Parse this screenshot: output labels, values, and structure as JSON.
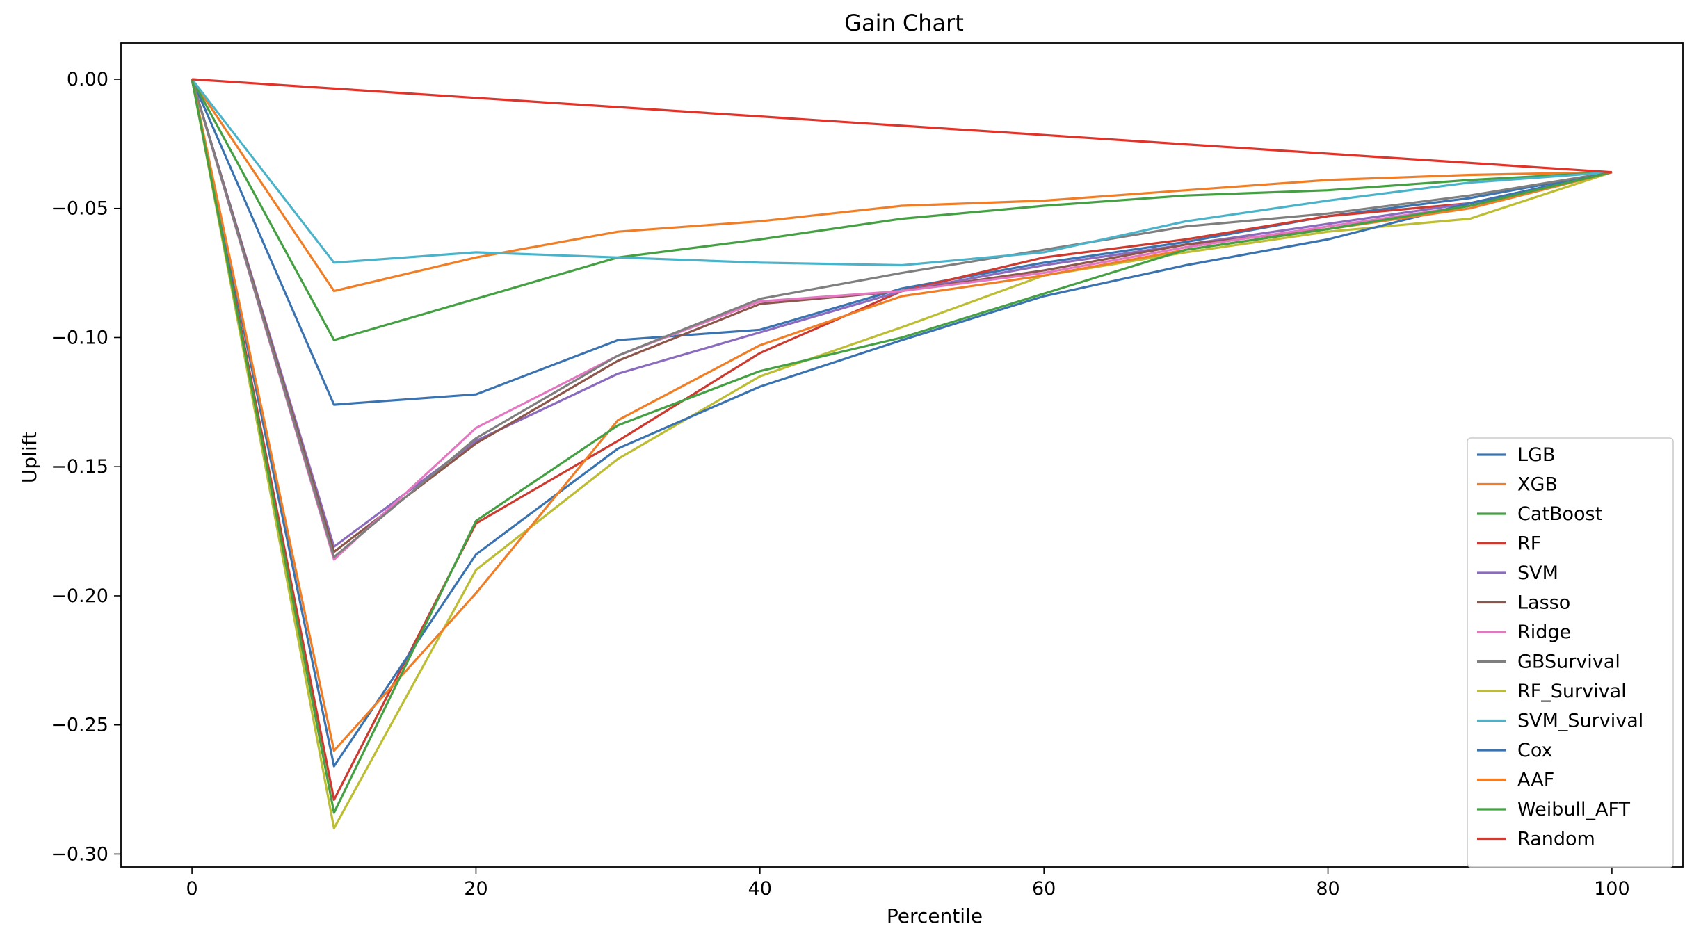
{
  "chart_data": {
    "type": "line",
    "title": "Gain Chart",
    "xlabel": "Percentile",
    "ylabel": "Uplift",
    "xlim": [
      -5,
      105
    ],
    "ylim": [
      -0.305,
      0.014
    ],
    "xticks": [
      0,
      20,
      40,
      60,
      80,
      100
    ],
    "xtick_labels": [
      "0",
      "20",
      "40",
      "60",
      "80",
      "100"
    ],
    "yticks": [
      0.0,
      -0.05,
      -0.1,
      -0.15,
      -0.2,
      -0.25,
      -0.3
    ],
    "ytick_labels": [
      "0.00",
      "−0.05",
      "−0.10",
      "−0.15",
      "−0.20",
      "−0.25",
      "−0.30"
    ],
    "grid": false,
    "legend_position": "lower-right",
    "x": [
      0,
      10,
      20,
      30,
      40,
      50,
      60,
      70,
      80,
      90,
      100
    ],
    "series": [
      {
        "name": "LGB",
        "color": "#3a73b0",
        "values": [
          0.0,
          -0.126,
          -0.122,
          -0.101,
          -0.097,
          -0.081,
          -0.071,
          -0.063,
          -0.053,
          -0.046,
          -0.036
        ]
      },
      {
        "name": "XGB",
        "color": "#f07e26",
        "values": [
          0.0,
          -0.082,
          -0.069,
          -0.059,
          -0.055,
          -0.049,
          -0.047,
          -0.043,
          -0.039,
          -0.037,
          -0.036
        ]
      },
      {
        "name": "CatBoost",
        "color": "#44a043",
        "values": [
          0.0,
          -0.101,
          -0.085,
          -0.069,
          -0.062,
          -0.054,
          -0.049,
          -0.045,
          -0.043,
          -0.039,
          -0.036
        ]
      },
      {
        "name": "RF",
        "color": "#cc3a30",
        "values": [
          0.0,
          -0.279,
          -0.172,
          -0.14,
          -0.106,
          -0.082,
          -0.069,
          -0.062,
          -0.053,
          -0.048,
          -0.036
        ]
      },
      {
        "name": "SVM",
        "color": "#8a6bbd",
        "values": [
          0.0,
          -0.181,
          -0.14,
          -0.114,
          -0.098,
          -0.082,
          -0.072,
          -0.064,
          -0.056,
          -0.048,
          -0.036
        ]
      },
      {
        "name": "Lasso",
        "color": "#8c564b",
        "values": [
          0.0,
          -0.183,
          -0.141,
          -0.109,
          -0.087,
          -0.082,
          -0.074,
          -0.064,
          -0.058,
          -0.049,
          -0.036
        ]
      },
      {
        "name": "Ridge",
        "color": "#e377c2",
        "values": [
          0.0,
          -0.186,
          -0.135,
          -0.107,
          -0.086,
          -0.082,
          -0.075,
          -0.065,
          -0.057,
          -0.049,
          -0.036
        ]
      },
      {
        "name": "GBSurvival",
        "color": "#7f7f7f",
        "values": [
          0.0,
          -0.185,
          -0.139,
          -0.107,
          -0.085,
          -0.075,
          -0.066,
          -0.057,
          -0.052,
          -0.045,
          -0.036
        ]
      },
      {
        "name": "RF_Survival",
        "color": "#bcbd32",
        "values": [
          0.0,
          -0.29,
          -0.19,
          -0.147,
          -0.115,
          -0.096,
          -0.076,
          -0.067,
          -0.059,
          -0.054,
          -0.036
        ]
      },
      {
        "name": "SVM_Survival",
        "color": "#4bb3c9",
        "values": [
          0.0,
          -0.071,
          -0.067,
          -0.069,
          -0.071,
          -0.072,
          -0.067,
          -0.055,
          -0.047,
          -0.04,
          -0.036
        ]
      },
      {
        "name": "Cox",
        "color": "#3a73b0",
        "values": [
          0.0,
          -0.266,
          -0.184,
          -0.143,
          -0.119,
          -0.101,
          -0.084,
          -0.072,
          -0.062,
          -0.048,
          -0.036
        ]
      },
      {
        "name": "AAF",
        "color": "#f07e26",
        "values": [
          0.0,
          -0.26,
          -0.199,
          -0.132,
          -0.103,
          -0.084,
          -0.076,
          -0.066,
          -0.058,
          -0.05,
          -0.036
        ]
      },
      {
        "name": "Weibull_AFT",
        "color": "#44a043",
        "values": [
          0.0,
          -0.284,
          -0.171,
          -0.134,
          -0.113,
          -0.1,
          -0.083,
          -0.066,
          -0.058,
          -0.049,
          -0.036
        ]
      },
      {
        "name": "Random",
        "color": "#e0332a",
        "values": [
          0.0,
          -0.0036,
          -0.0072,
          -0.0108,
          -0.0144,
          -0.018,
          -0.0216,
          -0.0252,
          -0.0288,
          -0.0324,
          -0.036
        ]
      }
    ]
  }
}
